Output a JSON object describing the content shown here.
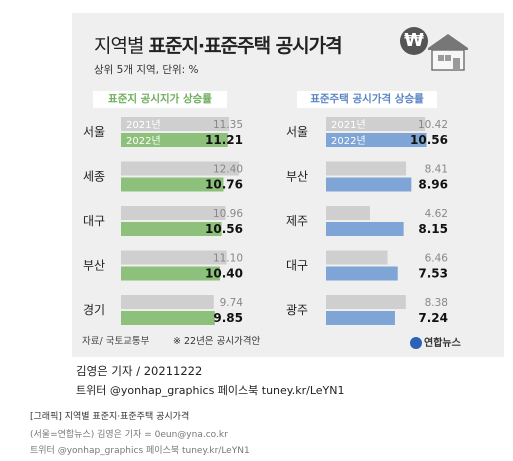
{
  "title_light": "지역별 ",
  "title_bold": "표준지·표준주택 공시가격",
  "subtitle": "상위 5개 지역, 단위: %",
  "icons": [
    "won-coin-icon",
    "house-icon"
  ],
  "colors": {
    "land_bar": "#8dc07b",
    "housing_bar": "#7fa4d6",
    "prior_bar": "#cfcfcf",
    "land_header": "#6fae5d",
    "housing_header": "#5b86c5"
  },
  "chart_data": [
    {
      "type": "bar",
      "title": "표준지 공시지가 상승률",
      "categories": [
        "서울",
        "세종",
        "대구",
        "부산",
        "경기"
      ],
      "series": [
        {
          "name": "2021년",
          "values": [
            11.35,
            12.4,
            10.96,
            11.1,
            9.74
          ]
        },
        {
          "name": "2022년",
          "values": [
            11.21,
            10.76,
            10.56,
            10.4,
            9.85
          ]
        }
      ]
    },
    {
      "type": "bar",
      "title": "표준주택 공시가격 상승률",
      "categories": [
        "서울",
        "부산",
        "제주",
        "대구",
        "광주"
      ],
      "series": [
        {
          "name": "2021년",
          "values": [
            10.42,
            8.41,
            4.62,
            6.46,
            8.38
          ]
        },
        {
          "name": "2022년",
          "values": [
            10.56,
            8.96,
            8.15,
            7.53,
            7.24
          ]
        }
      ]
    }
  ],
  "source": "자료/ 국토교통부",
  "footnote": "※ 22년은 공시가격안",
  "logo": "연합뉴스",
  "byline": "김영은 기자 / 20211222",
  "social": "트위터 @yonhap_graphics  페이스북 tuney.kr/LeYN1",
  "meta_title": "[그래픽] 지역별 표준지·표준주택 공시가격",
  "meta_credit": "(서울=연합뉴스) 김영은 기자 = 0eun@yna.co.kr",
  "meta_social": "트위터 @yonhap_graphics 페이스북 tuney.kr/LeYN1"
}
